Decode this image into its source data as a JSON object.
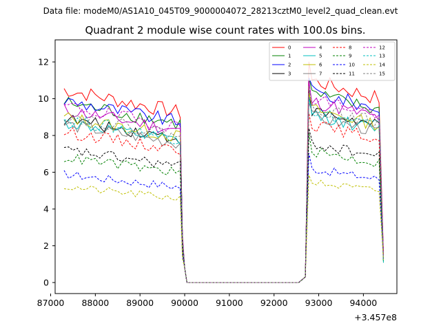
{
  "chart_data": {
    "type": "line",
    "subtitle": "Data file: modeM0/AS1A10_045T09_9000004072_28213cztM0_level2_quad_clean.evt",
    "title": "Quadrant 2 module wise count rates with 100.0s bins.",
    "xlabel": "",
    "ylabel": "",
    "x_offset_label": "+3.457e8",
    "xlim": [
      87100,
      94750
    ],
    "ylim": [
      -0.6,
      13.2
    ],
    "x_ticks": [
      87000,
      88000,
      89000,
      90000,
      91000,
      92000,
      93000,
      94000
    ],
    "x_tick_labels": [
      "87000",
      "88000",
      "89000",
      "90000",
      "91000",
      "92000",
      "93000",
      "94000"
    ],
    "y_ticks": [
      0,
      2,
      4,
      6,
      8,
      10,
      12
    ],
    "y_tick_labels": [
      "0",
      "2",
      "4",
      "6",
      "8",
      "10",
      "12"
    ],
    "legend_position": "top-right",
    "series": [
      {
        "name": "0",
        "color": "#ff0000",
        "style": "solid",
        "base": 10.5
      },
      {
        "name": "1",
        "color": "#008000",
        "style": "solid",
        "base": 9.8
      },
      {
        "name": "2",
        "color": "#0000ff",
        "style": "solid",
        "base": 9.9
      },
      {
        "name": "3",
        "color": "#000000",
        "style": "solid",
        "base": 8.9
      },
      {
        "name": "4",
        "color": "#bf00bf",
        "style": "solid",
        "base": 9.4
      },
      {
        "name": "5",
        "color": "#00bfbf",
        "style": "solid",
        "base": 8.7
      },
      {
        "name": "6",
        "color": "#bfbf00",
        "style": "solid",
        "base": 9.0
      },
      {
        "name": "7",
        "color": "#808080",
        "style": "solid",
        "base": 8.6
      },
      {
        "name": "8",
        "color": "#ff0000",
        "style": "dashed",
        "base": 8.2
      },
      {
        "name": "9",
        "color": "#008000",
        "style": "dashed",
        "base": 6.8
      },
      {
        "name": "10",
        "color": "#0000ff",
        "style": "dashed",
        "base": 5.9
      },
      {
        "name": "11",
        "color": "#000000",
        "style": "dashed",
        "base": 7.2
      },
      {
        "name": "12",
        "color": "#bf00bf",
        "style": "dashed",
        "base": 9.6
      },
      {
        "name": "13",
        "color": "#00bfbf",
        "style": "dashed",
        "base": 8.9
      },
      {
        "name": "14",
        "color": "#bfbf00",
        "style": "dashed",
        "base": 5.2
      },
      {
        "name": "15",
        "color": "#808080",
        "style": "dashed",
        "base": 9.1
      }
    ],
    "time_bins": {
      "first_on_start": 87300,
      "first_on_end": 89900,
      "gap_start": 90100,
      "gap_end": 92600,
      "second_on_start": 92800,
      "second_on_end": 94400,
      "bin_width": 100,
      "gap_value": 0.0
    }
  }
}
